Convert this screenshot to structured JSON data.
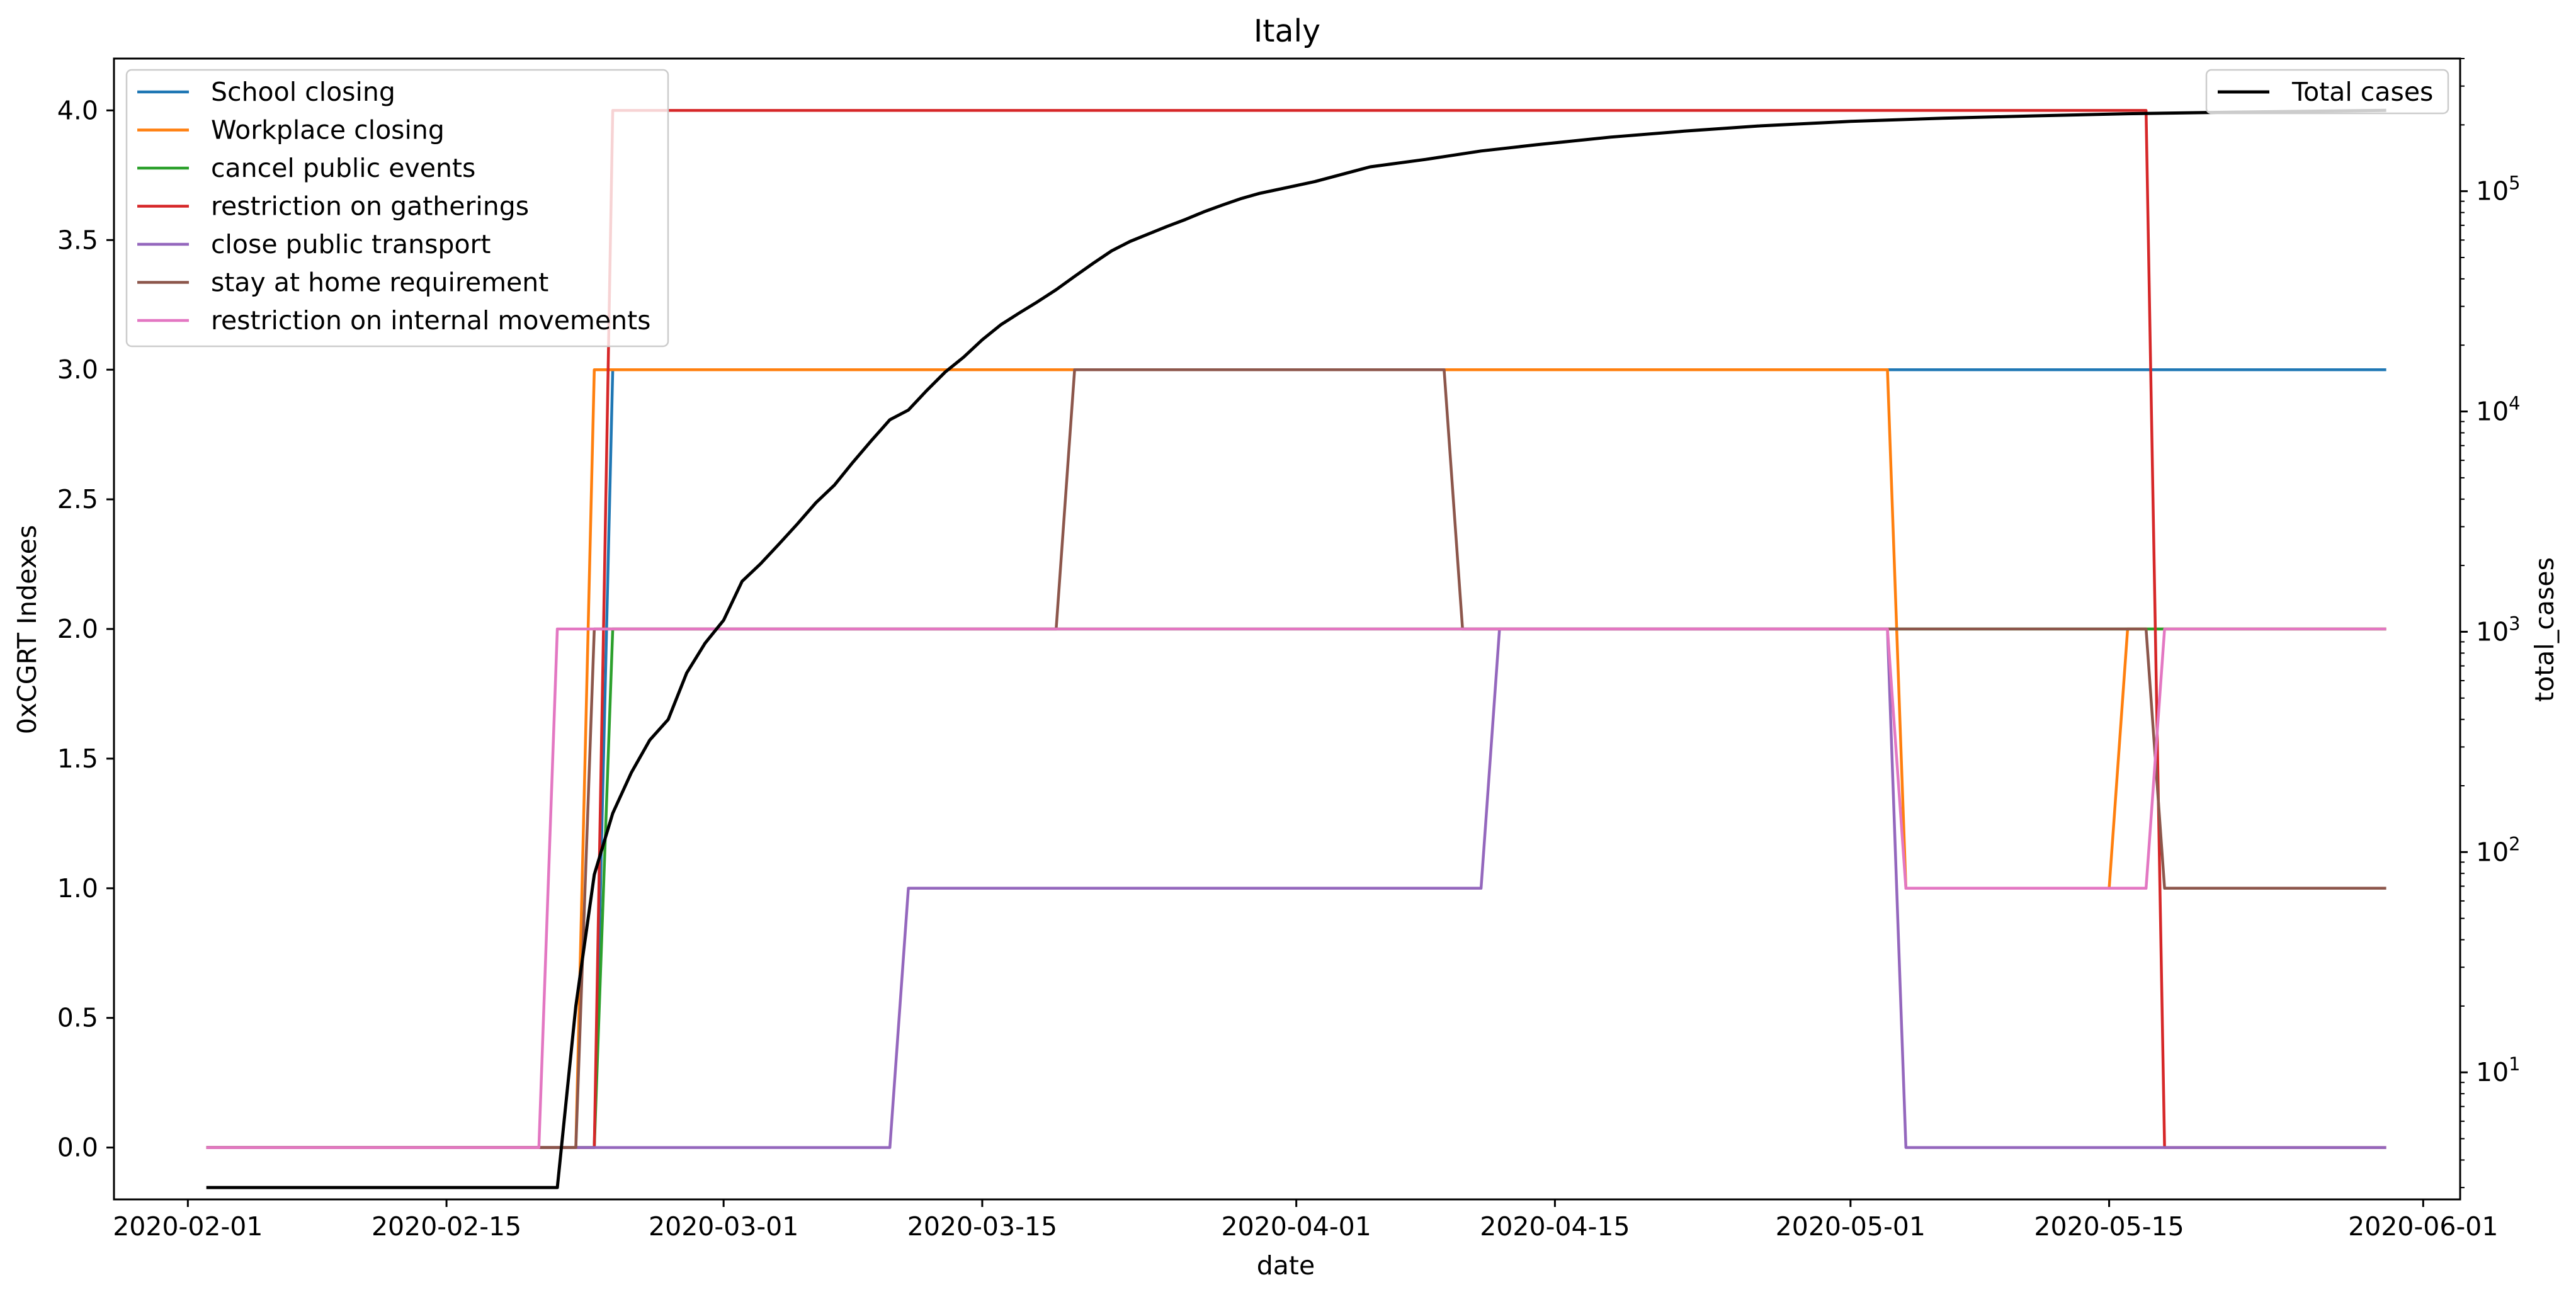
{
  "chart_data": {
    "type": "line",
    "title": "Italy",
    "xlabel": "date",
    "ylabel": "0xCGRT Indexes",
    "y2label": "total_cases",
    "x_range": [
      "2020-01-28",
      "2020-06-03"
    ],
    "ylim": [
      -0.2,
      4.2
    ],
    "y2_scale": "log",
    "y2_range": [
      2.65,
      400000
    ],
    "x_ticks": [
      "2020-02-01",
      "2020-02-15",
      "2020-03-01",
      "2020-03-15",
      "2020-04-01",
      "2020-04-15",
      "2020-05-01",
      "2020-05-15",
      "2020-06-01"
    ],
    "y_ticks": [
      "0.0",
      "0.5",
      "1.0",
      "1.5",
      "2.0",
      "2.5",
      "3.0",
      "3.5",
      "4.0"
    ],
    "y2_ticks": [
      {
        "base": "10",
        "exp": "1",
        "value": 10
      },
      {
        "base": "10",
        "exp": "2",
        "value": 100
      },
      {
        "base": "10",
        "exp": "3",
        "value": 1000
      },
      {
        "base": "10",
        "exp": "4",
        "value": 10000
      },
      {
        "base": "10",
        "exp": "5",
        "value": 100000
      }
    ],
    "legend_left_position": "upper-left",
    "legend_right_position": "upper-right",
    "grid": false,
    "series": [
      {
        "name": "School closing",
        "color": "#1f77b4",
        "x": [
          "2020-02-02",
          "2020-02-23",
          "2020-02-24",
          "2020-05-30"
        ],
        "y": [
          0,
          0,
          3,
          3
        ]
      },
      {
        "name": "Workplace closing",
        "color": "#ff7f0e",
        "x": [
          "2020-02-02",
          "2020-02-22",
          "2020-02-23",
          "2020-05-03",
          "2020-05-04",
          "2020-05-15",
          "2020-05-16",
          "2020-05-30"
        ],
        "y": [
          0,
          0,
          3,
          3,
          1,
          1,
          2,
          2
        ]
      },
      {
        "name": "cancel public events",
        "color": "#2ca02c",
        "x": [
          "2020-02-02",
          "2020-02-23",
          "2020-02-24",
          "2020-05-30"
        ],
        "y": [
          0,
          0,
          2,
          2
        ]
      },
      {
        "name": "restriction on gatherings",
        "color": "#d62728",
        "x": [
          "2020-02-02",
          "2020-02-23",
          "2020-02-24",
          "2020-05-17",
          "2020-05-18",
          "2020-05-30"
        ],
        "y": [
          0,
          0,
          4,
          4,
          0,
          0
        ]
      },
      {
        "name": "close public transport",
        "color": "#9467bd",
        "x": [
          "2020-02-02",
          "2020-03-10",
          "2020-03-11",
          "2020-04-11",
          "2020-04-12",
          "2020-05-03",
          "2020-05-04",
          "2020-05-30"
        ],
        "y": [
          0,
          0,
          1,
          1,
          2,
          2,
          0,
          0
        ]
      },
      {
        "name": "stay at home requirement",
        "color": "#8c564b",
        "x": [
          "2020-02-02",
          "2020-02-22",
          "2020-02-23",
          "2020-03-19",
          "2020-03-20",
          "2020-04-09",
          "2020-04-10",
          "2020-05-17",
          "2020-05-18",
          "2020-05-30"
        ],
        "y": [
          0,
          0,
          2,
          2,
          3,
          3,
          2,
          2,
          1,
          1
        ]
      },
      {
        "name": "restriction on internal movements",
        "color": "#e377c2",
        "x": [
          "2020-02-02",
          "2020-02-20",
          "2020-02-21",
          "2020-05-03",
          "2020-05-04",
          "2020-05-17",
          "2020-05-18",
          "2020-05-30"
        ],
        "y": [
          0,
          0,
          2,
          2,
          1,
          1,
          2,
          2
        ]
      }
    ],
    "secondary_series": {
      "name": "Total cases",
      "color": "#000000",
      "axis": "right",
      "scale": "log",
      "x": [
        "2020-02-02",
        "2020-02-21",
        "2020-02-22",
        "2020-02-23",
        "2020-02-24",
        "2020-02-25",
        "2020-02-26",
        "2020-02-27",
        "2020-02-28",
        "2020-02-29",
        "2020-03-01",
        "2020-03-02",
        "2020-03-03",
        "2020-03-04",
        "2020-03-05",
        "2020-03-06",
        "2020-03-07",
        "2020-03-08",
        "2020-03-09",
        "2020-03-10",
        "2020-03-11",
        "2020-03-12",
        "2020-03-13",
        "2020-03-14",
        "2020-03-15",
        "2020-03-16",
        "2020-03-17",
        "2020-03-18",
        "2020-03-19",
        "2020-03-20",
        "2020-03-21",
        "2020-03-22",
        "2020-03-23",
        "2020-03-24",
        "2020-03-25",
        "2020-03-26",
        "2020-03-27",
        "2020-03-28",
        "2020-03-29",
        "2020-03-30",
        "2020-03-31",
        "2020-04-02",
        "2020-04-05",
        "2020-04-08",
        "2020-04-11",
        "2020-04-14",
        "2020-04-18",
        "2020-04-22",
        "2020-04-26",
        "2020-05-01",
        "2020-05-06",
        "2020-05-11",
        "2020-05-16",
        "2020-05-22",
        "2020-05-30"
      ],
      "y": [
        3,
        3,
        20,
        79,
        150,
        229,
        322,
        400,
        650,
        888,
        1128,
        1694,
        2036,
        2502,
        3089,
        3858,
        4636,
        5883,
        7375,
        9172,
        10149,
        12462,
        15113,
        17660,
        21157,
        24747,
        27980,
        31506,
        35713,
        41035,
        47021,
        53578,
        59138,
        63927,
        69176,
        74386,
        80589,
        86498,
        92472,
        97689,
        101739,
        110574,
        128948,
        139422,
        152271,
        162488,
        175925,
        187327,
        197675,
        207428,
        214457,
        219814,
        224760,
        228658,
        232664
      ]
    }
  }
}
